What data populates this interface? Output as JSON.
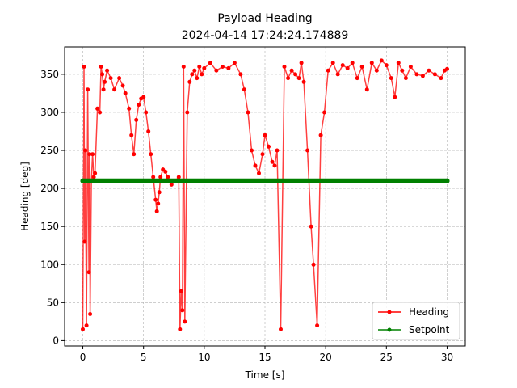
{
  "chart_data": {
    "type": "line",
    "title": "Payload Heading",
    "subtitle": "2024-04-14 17:24:24.174889",
    "xlabel": "Time [s]",
    "ylabel": "Heading [deg]",
    "xlim": [
      -1.5,
      31.5
    ],
    "ylim": [
      -7,
      386
    ],
    "xticks": [
      0,
      5,
      10,
      15,
      20,
      25,
      30
    ],
    "yticks": [
      0,
      50,
      100,
      150,
      200,
      250,
      300,
      350
    ],
    "grid": true,
    "legend_position": "bottom-right",
    "series": [
      {
        "name": "Heading",
        "color": "#ff0000",
        "marker": "circle",
        "x": [
          0.0,
          0.1,
          0.15,
          0.2,
          0.3,
          0.4,
          0.5,
          0.55,
          0.6,
          0.7,
          0.8,
          0.9,
          1.0,
          1.2,
          1.4,
          1.5,
          1.6,
          1.7,
          1.8,
          2.0,
          2.3,
          2.6,
          3.0,
          3.3,
          3.5,
          3.8,
          4.0,
          4.2,
          4.4,
          4.6,
          4.8,
          5.0,
          5.2,
          5.4,
          5.6,
          5.8,
          6.0,
          6.1,
          6.2,
          6.3,
          6.4,
          6.6,
          6.8,
          7.0,
          7.3,
          7.6,
          7.9,
          8.0,
          8.1,
          8.2,
          8.3,
          8.4,
          8.6,
          8.8,
          9.0,
          9.2,
          9.4,
          9.6,
          9.8,
          10.0,
          10.5,
          11.0,
          11.5,
          12.0,
          12.5,
          13.0,
          13.3,
          13.6,
          13.9,
          14.2,
          14.5,
          14.8,
          15.0,
          15.3,
          15.6,
          15.8,
          16.0,
          16.3,
          16.6,
          16.9,
          17.2,
          17.5,
          17.8,
          18.0,
          18.2,
          18.5,
          18.8,
          19.0,
          19.3,
          19.6,
          19.9,
          20.2,
          20.6,
          21.0,
          21.4,
          21.8,
          22.2,
          22.6,
          23.0,
          23.4,
          23.8,
          24.2,
          24.6,
          25.0,
          25.4,
          25.7,
          26.0,
          26.3,
          26.6,
          27.0,
          27.5,
          28.0,
          28.5,
          29.0,
          29.5,
          29.8,
          30.0
        ],
        "y": [
          15,
          360,
          130,
          250,
          20,
          330,
          90,
          245,
          35,
          210,
          245,
          215,
          220,
          305,
          300,
          360,
          350,
          330,
          340,
          355,
          345,
          330,
          345,
          335,
          325,
          305,
          270,
          245,
          290,
          310,
          318,
          320,
          300,
          275,
          245,
          215,
          185,
          170,
          180,
          195,
          215,
          225,
          222,
          215,
          205,
          210,
          215,
          15,
          65,
          40,
          360,
          25,
          300,
          340,
          350,
          355,
          345,
          360,
          350,
          358,
          365,
          355,
          360,
          358,
          365,
          350,
          330,
          300,
          250,
          230,
          220,
          245,
          270,
          255,
          235,
          230,
          250,
          15,
          360,
          345,
          355,
          350,
          345,
          365,
          340,
          250,
          150,
          100,
          20,
          270,
          300,
          355,
          365,
          350,
          362,
          358,
          365,
          345,
          360,
          330,
          365,
          355,
          368,
          362,
          345,
          320,
          365,
          355,
          345,
          360,
          350,
          348,
          355,
          350,
          345,
          355,
          357
        ]
      },
      {
        "name": "Setpoint",
        "color": "#008000",
        "marker": "circle",
        "x": [
          0,
          30
        ],
        "y": [
          210,
          210
        ]
      }
    ]
  }
}
